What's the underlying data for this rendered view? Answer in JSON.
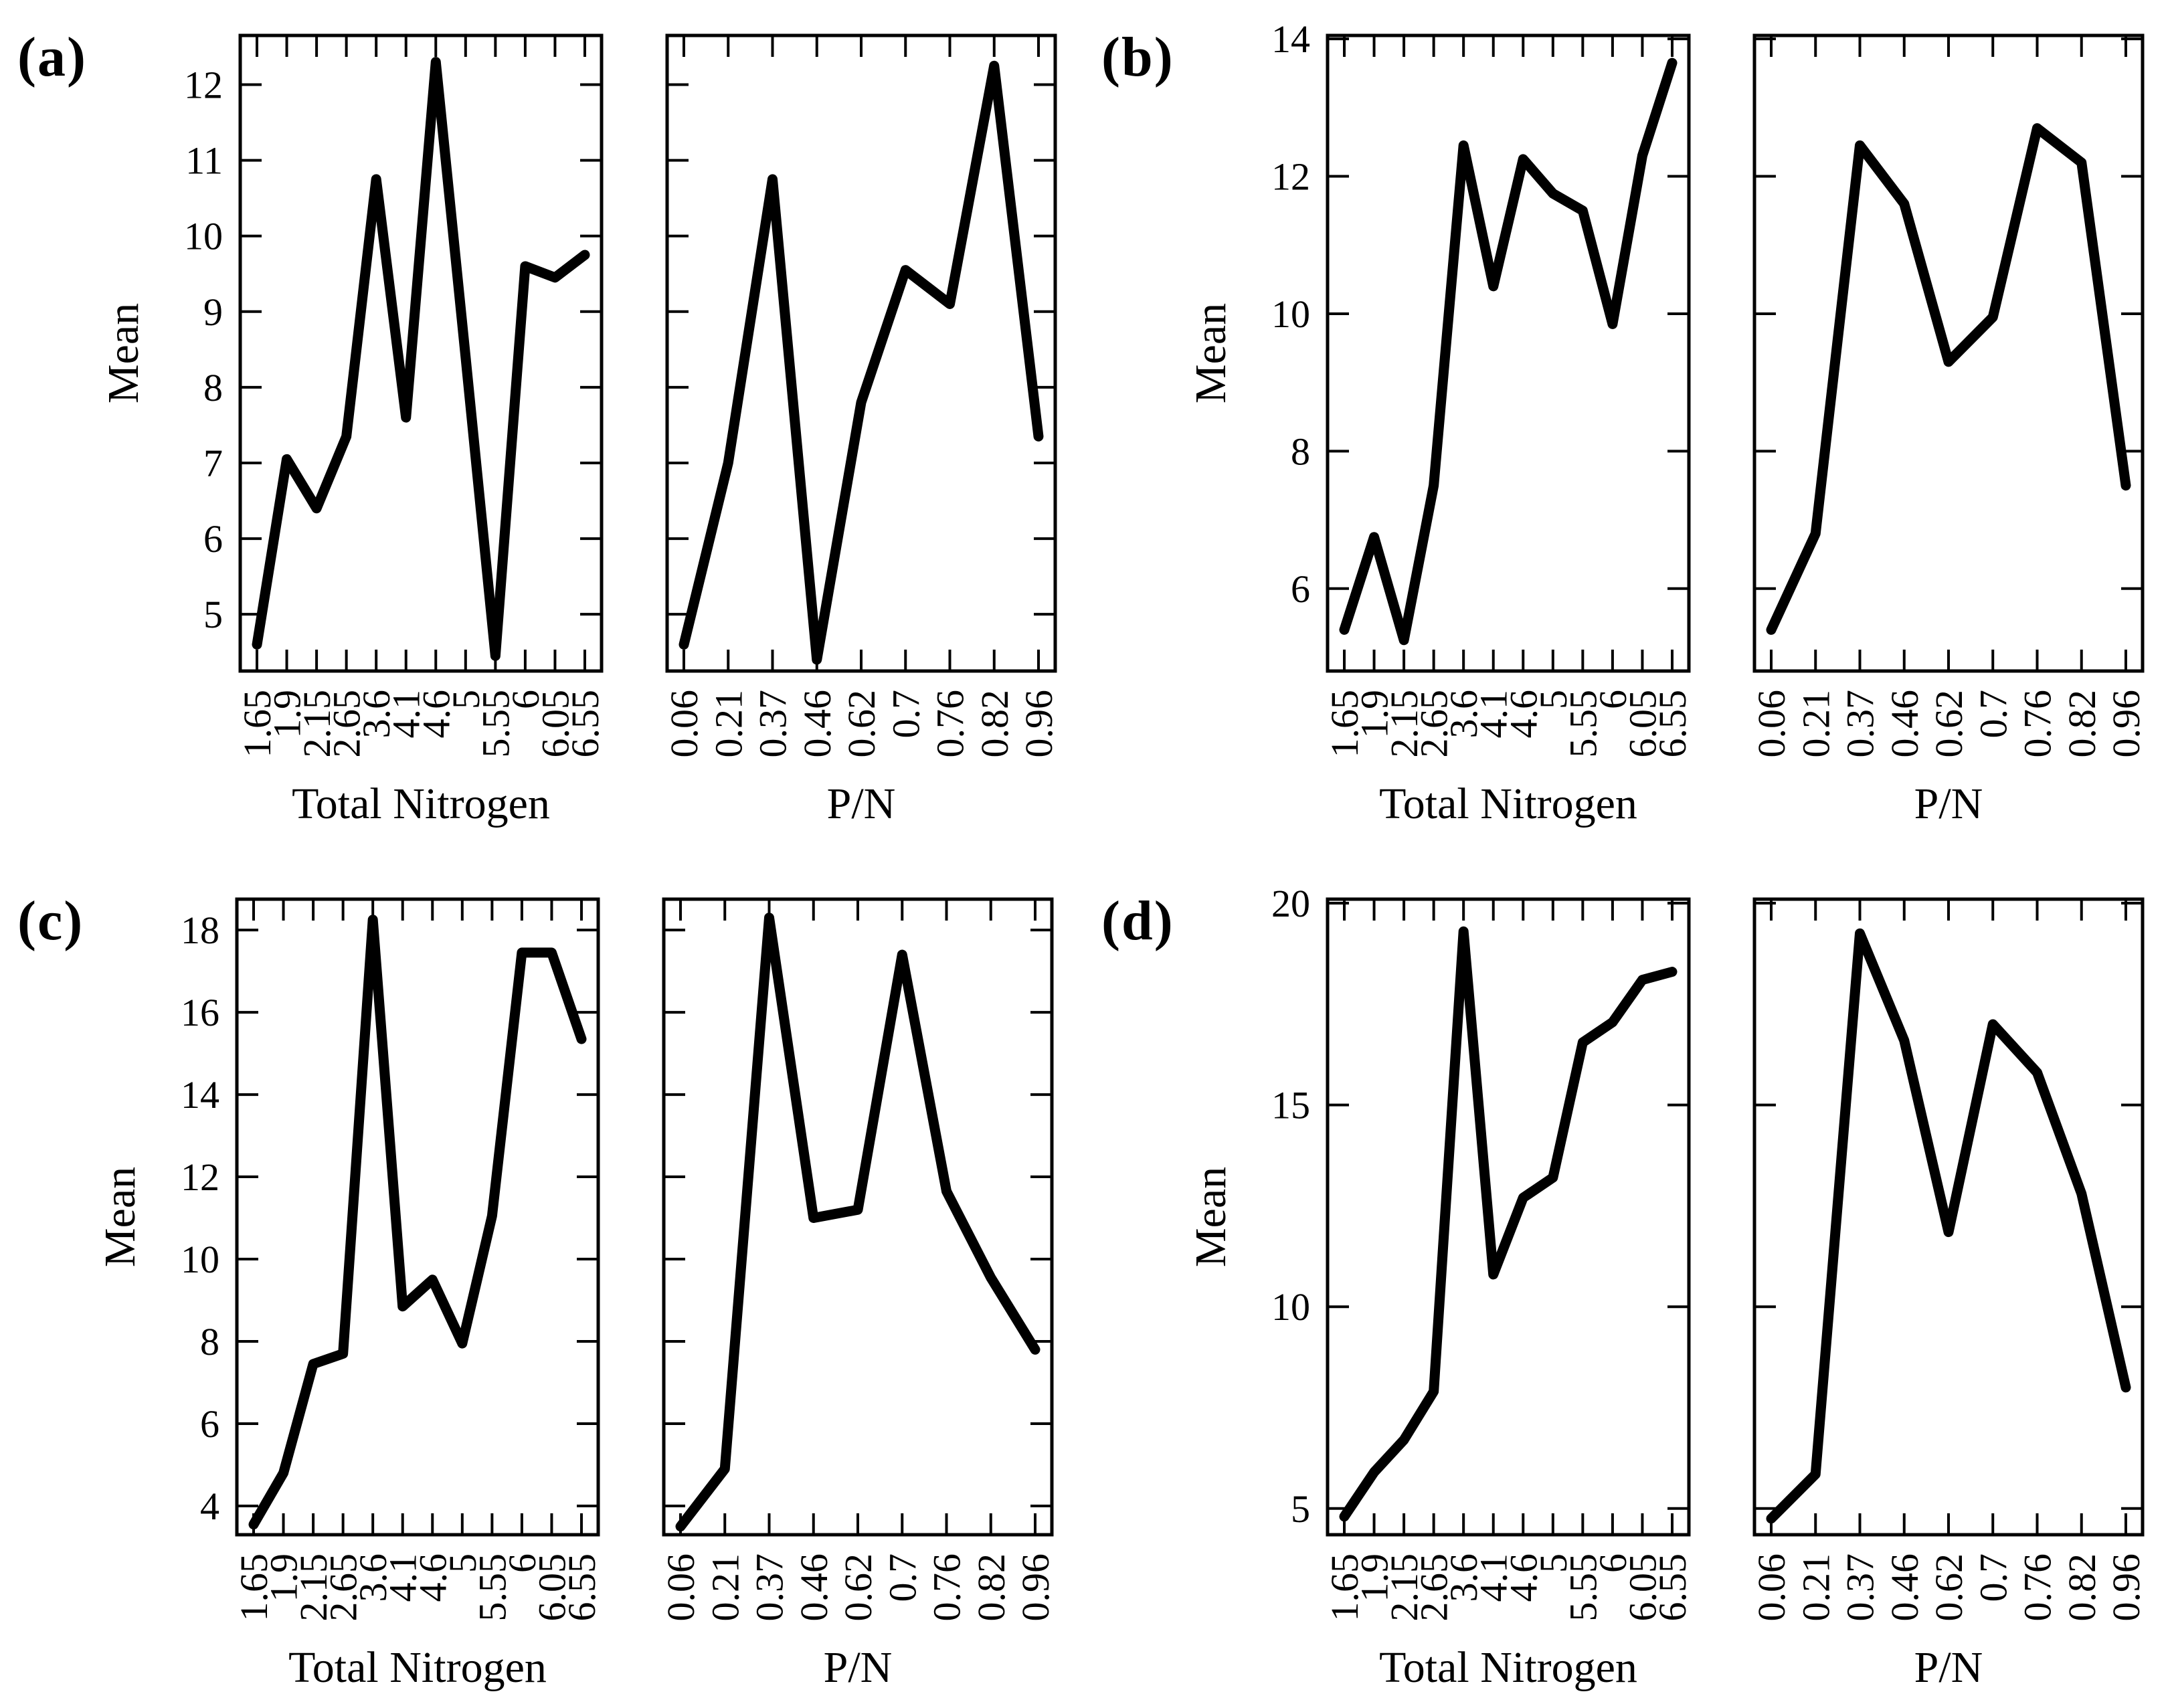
{
  "figure": {
    "panel_labels": [
      "(a)",
      "(b)",
      "(c)",
      "(d)"
    ],
    "y_axis_title": "Mean",
    "colors": {
      "line": "#000000",
      "background": "#ffffff",
      "text": "#000000"
    }
  },
  "chart_data": [
    {
      "panel": "(a)",
      "type": "line",
      "title": "",
      "xlabel": "Total Nitrogen",
      "ylabel": "Mean",
      "categories": [
        "1.65",
        "1.9",
        "2.15",
        "2.65",
        "3.6",
        "4.1",
        "4.6",
        "5",
        "5.55",
        "6",
        "6.05",
        "6.55"
      ],
      "values": [
        4.6,
        7.05,
        6.4,
        7.35,
        10.75,
        7.6,
        12.3,
        8.4,
        4.45,
        9.6,
        9.45,
        9.75
      ],
      "y_tick_values": [
        5,
        6,
        7,
        8,
        9,
        10,
        11,
        12
      ],
      "y_tick_labels_shown": true,
      "ylim": [
        4.25,
        12.65
      ],
      "grid": false,
      "legend": "none"
    },
    {
      "panel": "(a)",
      "type": "line",
      "title": "",
      "xlabel": "P/N",
      "ylabel": "",
      "categories": [
        "0.06",
        "0.21",
        "0.37",
        "0.46",
        "0.62",
        "0.7",
        "0.76",
        "0.82",
        "0.96"
      ],
      "values": [
        4.6,
        7.0,
        10.75,
        4.4,
        7.8,
        9.55,
        9.1,
        12.25,
        7.35
      ],
      "y_tick_values": [
        5,
        6,
        7,
        8,
        9,
        10,
        11,
        12
      ],
      "y_tick_labels_shown": false,
      "ylim": [
        4.25,
        12.65
      ],
      "grid": false,
      "legend": "none"
    },
    {
      "panel": "(b)",
      "type": "line",
      "title": "",
      "xlabel": "Total Nitrogen",
      "ylabel": "Mean",
      "categories": [
        "1.65",
        "1.9",
        "2.15",
        "2.65",
        "3.6",
        "4.1",
        "4.6",
        "5",
        "5.55",
        "6",
        "6.05",
        "6.55"
      ],
      "values": [
        5.4,
        6.75,
        5.25,
        7.5,
        12.45,
        10.4,
        12.25,
        11.75,
        11.5,
        9.85,
        12.3,
        13.65
      ],
      "y_tick_values": [
        6,
        8,
        10,
        12,
        14
      ],
      "y_tick_labels_shown": true,
      "ylim": [
        4.8,
        14.05
      ],
      "grid": false,
      "legend": "none"
    },
    {
      "panel": "(b)",
      "type": "line",
      "title": "",
      "xlabel": "P/N",
      "ylabel": "",
      "categories": [
        "0.06",
        "0.21",
        "0.37",
        "0.46",
        "0.62",
        "0.7",
        "0.76",
        "0.82",
        "0.96"
      ],
      "values": [
        5.4,
        6.8,
        12.45,
        11.6,
        9.3,
        9.95,
        12.7,
        12.2,
        7.5
      ],
      "y_tick_values": [
        6,
        8,
        10,
        12,
        14
      ],
      "y_tick_labels_shown": false,
      "ylim": [
        4.8,
        14.05
      ],
      "grid": false,
      "legend": "none"
    },
    {
      "panel": "(c)",
      "type": "line",
      "title": "",
      "xlabel": "Total Nitrogen",
      "ylabel": "Mean",
      "categories": [
        "1.65",
        "1.9",
        "2.15",
        "2.65",
        "3.6",
        "4.1",
        "4.6",
        "5",
        "5.55",
        "6",
        "6.05",
        "6.55"
      ],
      "values": [
        3.55,
        4.8,
        7.45,
        7.7,
        18.25,
        8.85,
        9.5,
        7.95,
        11.05,
        17.45,
        17.45,
        15.35
      ],
      "y_tick_values": [
        4,
        6,
        8,
        10,
        12,
        14,
        16,
        18
      ],
      "y_tick_labels_shown": true,
      "ylim": [
        3.3,
        18.75
      ],
      "grid": false,
      "legend": "none"
    },
    {
      "panel": "(c)",
      "type": "line",
      "title": "",
      "xlabel": "P/N",
      "ylabel": "",
      "categories": [
        "0.06",
        "0.21",
        "0.37",
        "0.46",
        "0.62",
        "0.7",
        "0.76",
        "0.82",
        "0.96"
      ],
      "values": [
        3.5,
        4.9,
        18.3,
        11.0,
        11.2,
        17.4,
        11.65,
        9.55,
        7.8
      ],
      "y_tick_values": [
        4,
        6,
        8,
        10,
        12,
        14,
        16,
        18
      ],
      "y_tick_labels_shown": false,
      "ylim": [
        3.3,
        18.75
      ],
      "grid": false,
      "legend": "none"
    },
    {
      "panel": "(d)",
      "type": "line",
      "title": "",
      "xlabel": "Total Nitrogen",
      "ylabel": "Mean",
      "categories": [
        "1.65",
        "1.9",
        "2.15",
        "2.65",
        "3.6",
        "4.1",
        "4.6",
        "5",
        "5.55",
        "6",
        "6.05",
        "6.55"
      ],
      "values": [
        4.8,
        5.9,
        6.7,
        7.9,
        19.3,
        10.8,
        12.7,
        13.2,
        16.55,
        17.05,
        18.1,
        18.3
      ],
      "y_tick_values": [
        5,
        10,
        15,
        20
      ],
      "y_tick_labels_shown": true,
      "ylim": [
        4.35,
        20.1
      ],
      "grid": false,
      "legend": "none"
    },
    {
      "panel": "(d)",
      "type": "line",
      "title": "",
      "xlabel": "P/N",
      "ylabel": "",
      "categories": [
        "0.06",
        "0.21",
        "0.37",
        "0.46",
        "0.62",
        "0.7",
        "0.76",
        "0.82",
        "0.96"
      ],
      "values": [
        4.75,
        5.85,
        19.25,
        16.6,
        11.85,
        17.0,
        15.8,
        12.8,
        8.0
      ],
      "y_tick_values": [
        5,
        10,
        15,
        20
      ],
      "y_tick_labels_shown": false,
      "ylim": [
        4.35,
        20.1
      ],
      "grid": false,
      "legend": "none"
    }
  ]
}
